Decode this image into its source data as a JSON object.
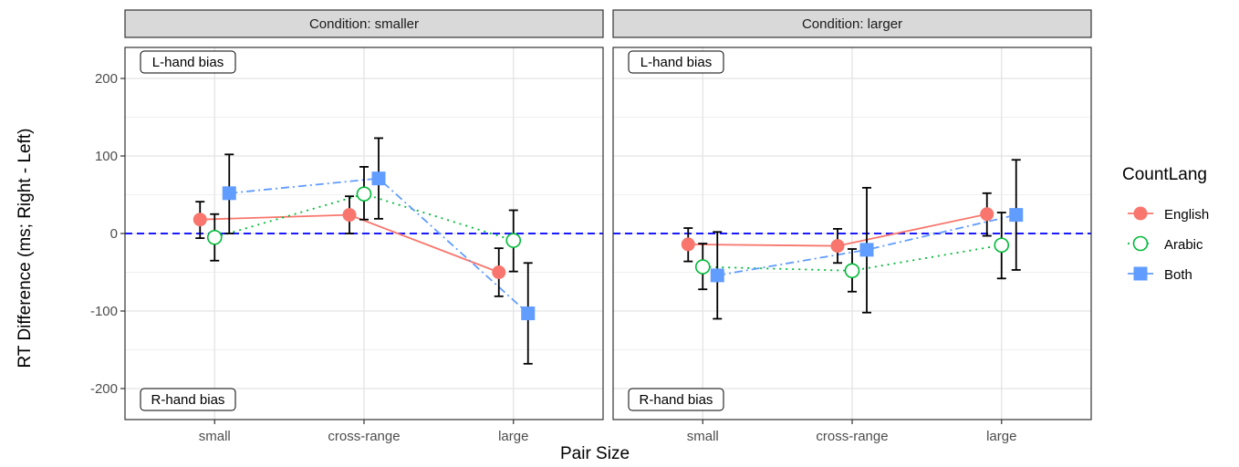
{
  "chart_data": {
    "type": "line",
    "title": "",
    "xlabel": "Pair Size",
    "ylabel": "RT Difference (ms; Right - Left)",
    "categories": [
      "small",
      "cross-range",
      "large"
    ],
    "ylim": [
      -240,
      240
    ],
    "yticks": [
      200,
      100,
      0,
      -100,
      -200
    ],
    "ytick_labels": [
      "200",
      "100",
      "0",
      "-100",
      "-200"
    ],
    "reference_line": {
      "y": 0,
      "style": "dashed",
      "color": "#1a1aff"
    },
    "grid": true,
    "legend": {
      "title": "CountLang",
      "placement": "right"
    },
    "annotations": {
      "top": "L-hand bias",
      "bottom": "R-hand bias"
    },
    "series_style": [
      {
        "name": "English",
        "color": "#f8766d",
        "marker": "filled-circle",
        "line": "solid"
      },
      {
        "name": "Arabic",
        "color": "#00ba38",
        "marker": "open-circle",
        "line": "dotted"
      },
      {
        "name": "Both",
        "color": "#619cff",
        "marker": "filled-square",
        "line": "dashdot"
      }
    ],
    "panels": [
      {
        "strip": "Condition: smaller",
        "series": [
          {
            "name": "English",
            "values": [
              18,
              24,
              -50
            ],
            "ci_low": [
              -6,
              0,
              -81
            ],
            "ci_high": [
              41,
              48,
              -19
            ]
          },
          {
            "name": "Arabic",
            "values": [
              -5,
              51,
              -9
            ],
            "ci_low": [
              -35,
              18,
              -49
            ],
            "ci_high": [
              25,
              86,
              30
            ]
          },
          {
            "name": "Both",
            "values": [
              52,
              71,
              -103
            ],
            "ci_low": [
              0,
              19,
              -168
            ],
            "ci_high": [
              102,
              123,
              -38
            ]
          }
        ]
      },
      {
        "strip": "Condition: larger",
        "series": [
          {
            "name": "English",
            "values": [
              -14,
              -16,
              25
            ],
            "ci_low": [
              -36,
              -38,
              -3
            ],
            "ci_high": [
              7,
              6,
              52
            ]
          },
          {
            "name": "Arabic",
            "values": [
              -43,
              -48,
              -15
            ],
            "ci_low": [
              -72,
              -75,
              -58
            ],
            "ci_high": [
              -13,
              -20,
              27
            ]
          },
          {
            "name": "Both",
            "values": [
              -54,
              -21,
              24
            ],
            "ci_low": [
              -110,
              -102,
              -47
            ],
            "ci_high": [
              2,
              59,
              95
            ]
          }
        ]
      }
    ]
  }
}
